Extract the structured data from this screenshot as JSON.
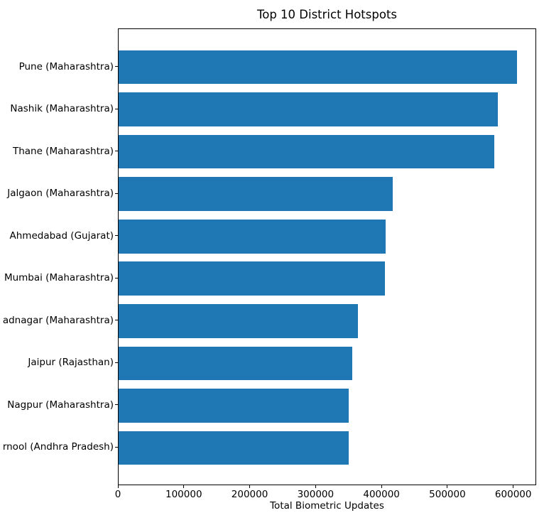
{
  "chart_data": {
    "type": "bar",
    "orientation": "horizontal",
    "title": "Top 10 District Hotspots",
    "xlabel": "Total Biometric Updates",
    "ylabel": "",
    "categories": [
      "Pune (Maharashtra)",
      "Nashik (Maharashtra)",
      "Thane (Maharashtra)",
      "Jalgaon (Maharashtra)",
      "Ahmedabad (Gujarat)",
      "Mumbai (Maharashtra)",
      "adnagar (Maharashtra)",
      "Jaipur (Rajasthan)",
      "Nagpur (Maharashtra)",
      "rnool (Andhra Pradesh)"
    ],
    "values": [
      605000,
      576000,
      570000,
      416000,
      405000,
      404000,
      363000,
      355000,
      349000,
      349000
    ],
    "xticks": [
      0,
      100000,
      200000,
      300000,
      400000,
      500000,
      600000
    ],
    "xlim": [
      0,
      634800
    ],
    "bar_color": "#1f77b4",
    "grid": false,
    "legend": null
  }
}
